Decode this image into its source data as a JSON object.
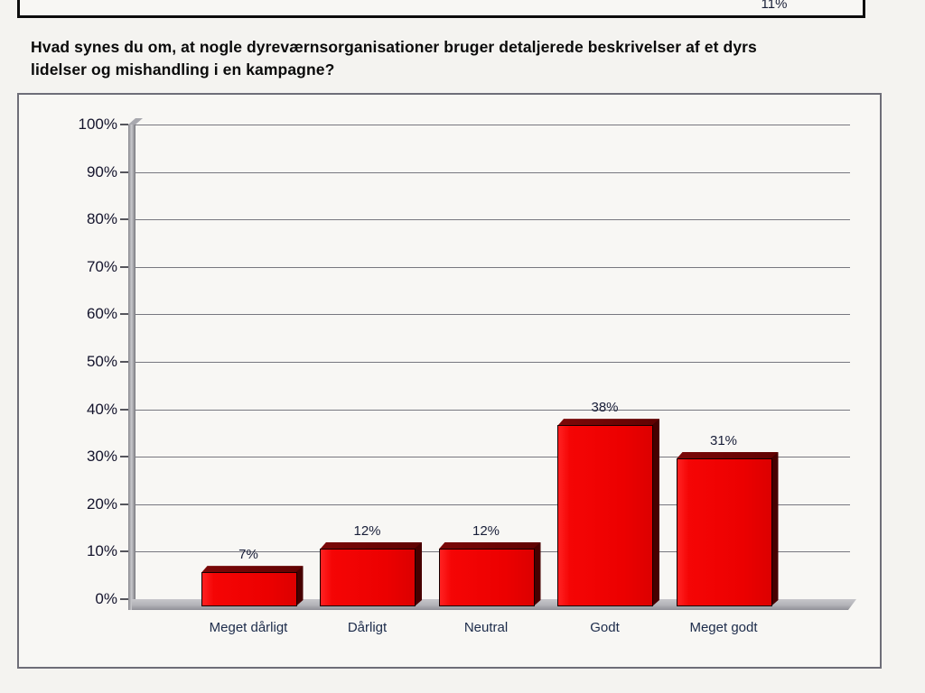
{
  "top_box": {
    "partial_text": "11%"
  },
  "question": {
    "line1": "Hvad synes du om, at nogle dyreværnsorganisationer bruger detaljerede beskrivelser af et dyrs",
    "line2": "lidelser og mishandling i en kampagne?"
  },
  "chart_data": {
    "type": "bar",
    "title": "",
    "xlabel": "",
    "ylabel": "",
    "categories": [
      "Meget dårligt",
      "Dårligt",
      "Neutral",
      "Godt",
      "Meget godt"
    ],
    "values": [
      7,
      12,
      12,
      38,
      31
    ],
    "value_labels": [
      "7%",
      "12%",
      "12%",
      "38%",
      "31%"
    ],
    "y_ticks": [
      {
        "value": 100,
        "label": "100%"
      },
      {
        "value": 90,
        "label": "90%"
      },
      {
        "value": 80,
        "label": "80%"
      },
      {
        "value": 70,
        "label": "70%"
      },
      {
        "value": 60,
        "label": "60%"
      },
      {
        "value": 50,
        "label": "50%"
      },
      {
        "value": 40,
        "label": "40%"
      },
      {
        "value": 30,
        "label": "30%"
      },
      {
        "value": 20,
        "label": "20%"
      },
      {
        "value": 10,
        "label": "10%"
      },
      {
        "value": 0,
        "label": "0%"
      }
    ],
    "ylim": [
      0,
      100
    ],
    "grid": "horizontal",
    "legend": "none",
    "style": "3d-column",
    "colors": {
      "bar_front": "#ec0000",
      "bar_top": "#6b0404",
      "bar_side": "#470000",
      "gridline": "#77777f",
      "wall_floor": "#b3b3b8",
      "label_text": "#1c2b4a"
    }
  }
}
